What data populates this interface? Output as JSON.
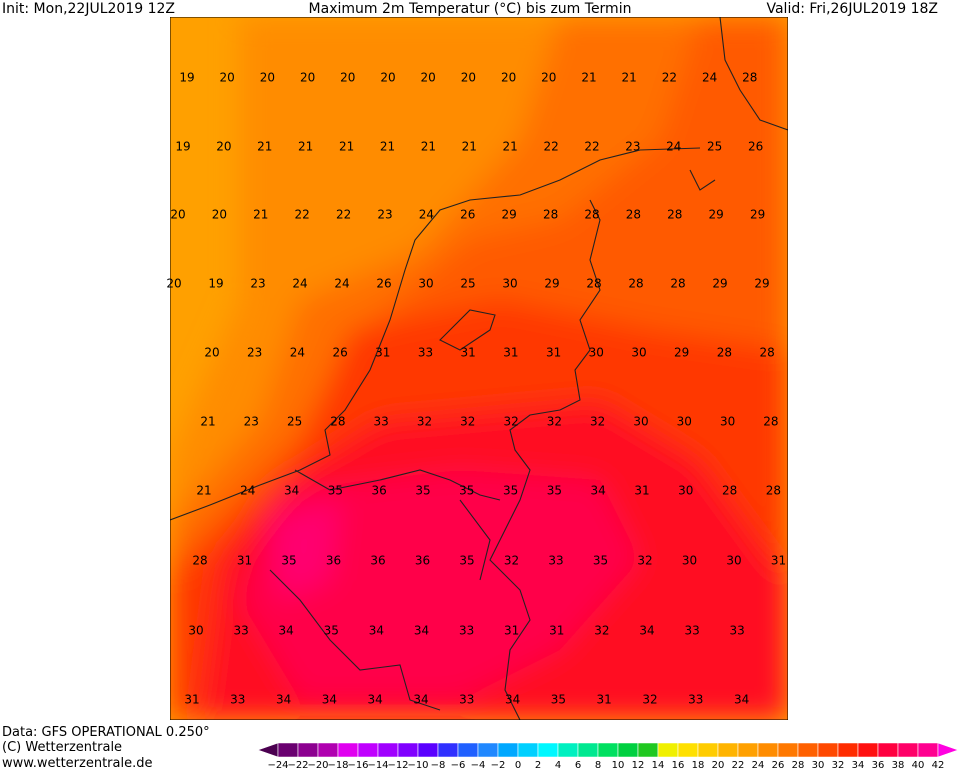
{
  "header": {
    "init": "Init: Mon,22JUL2019 12Z",
    "title": "Maximum 2m Temperatur (°C) bis zum Termin",
    "valid": "Valid: Fri,26JUL2019 18Z"
  },
  "map": {
    "rows": [
      [
        "19",
        "20",
        "20",
        "20",
        "20",
        "20",
        "20",
        "20",
        "20",
        "20",
        "21",
        "21",
        "22",
        "24",
        "28"
      ],
      [
        "19",
        "20",
        "21",
        "21",
        "21",
        "21",
        "21",
        "21",
        "21",
        "22",
        "22",
        "23",
        "24",
        "25",
        "26"
      ],
      [
        "20",
        "20",
        "21",
        "22",
        "22",
        "23",
        "24",
        "26",
        "29",
        "28",
        "28",
        "28",
        "28",
        "29",
        "29"
      ],
      [
        "20",
        "19",
        "23",
        "24",
        "24",
        "26",
        "30",
        "25",
        "30",
        "29",
        "28",
        "28",
        "28",
        "29",
        "29"
      ],
      [
        "20",
        "23",
        "24",
        "26",
        "31",
        "33",
        "31",
        "31",
        "31",
        "30",
        "30",
        "29",
        "28",
        "28"
      ],
      [
        "21",
        "23",
        "25",
        "28",
        "33",
        "32",
        "32",
        "32",
        "32",
        "32",
        "30",
        "30",
        "30",
        "28"
      ],
      [
        "21",
        "24",
        "34",
        "35",
        "36",
        "35",
        "35",
        "35",
        "35",
        "34",
        "31",
        "30",
        "28",
        "28"
      ],
      [
        "28",
        "31",
        "35",
        "36",
        "36",
        "36",
        "35",
        "32",
        "33",
        "35",
        "32",
        "30",
        "30",
        "31"
      ],
      [
        "30",
        "33",
        "34",
        "35",
        "34",
        "34",
        "33",
        "31",
        "31",
        "32",
        "34",
        "33",
        "33"
      ],
      [
        "31",
        "33",
        "34",
        "34",
        "34",
        "34",
        "33",
        "34",
        "35",
        "31",
        "32",
        "33",
        "34"
      ]
    ]
  },
  "footer": {
    "source": "Data: GFS OPERATIONAL 0.250°",
    "copyright": "(C) Wetterzentrale",
    "url": "www.wetterzentrale.de"
  },
  "colorbar": {
    "labels": [
      "−24",
      "−22",
      "−20",
      "−18",
      "−16",
      "−14",
      "−12",
      "−10",
      "−8",
      "−6",
      "−4",
      "−2",
      "0",
      "2",
      "4",
      "6",
      "8",
      "10",
      "12",
      "14",
      "16",
      "18",
      "20",
      "22",
      "24",
      "26",
      "28",
      "30",
      "32",
      "34",
      "36",
      "38",
      "40",
      "42"
    ],
    "colors": [
      "#4b0050",
      "#6a0070",
      "#8c0090",
      "#b000b0",
      "#e000f0",
      "#c000ff",
      "#a000ff",
      "#8000ff",
      "#5a00ff",
      "#3030ff",
      "#2060ff",
      "#2088ff",
      "#00a8ff",
      "#00d0ff",
      "#00f8ff",
      "#00f0c0",
      "#00e890",
      "#00e060",
      "#00d040",
      "#20c820",
      "#f0f000",
      "#ffe000",
      "#ffcc00",
      "#ffb400",
      "#ffa000",
      "#ff8c00",
      "#ff7800",
      "#ff6000",
      "#ff4800",
      "#ff2c00",
      "#ff1010",
      "#ff0040",
      "#ff0068",
      "#ff0090",
      "#ff00e0"
    ]
  }
}
